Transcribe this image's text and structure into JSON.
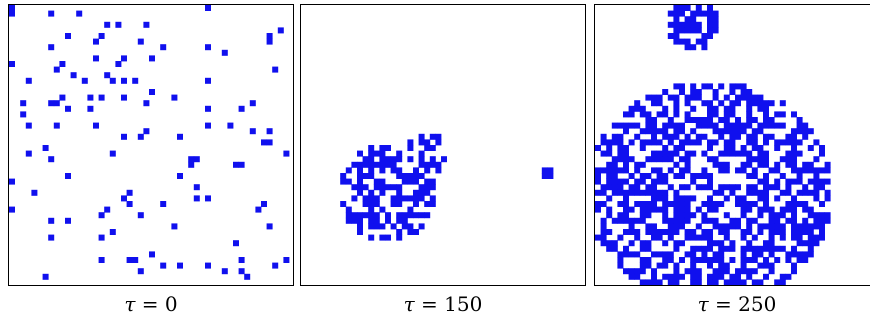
{
  "accent_color": "#1010ee",
  "panels": [
    {
      "caption_symbol": "τ",
      "caption_rest": " = 0",
      "pattern": "sparse-random"
    },
    {
      "caption_symbol": "τ",
      "caption_rest": " = 150",
      "pattern": "small-cluster"
    },
    {
      "caption_symbol": "τ",
      "caption_rest": " = 250",
      "pattern": "large-cluster"
    }
  ]
}
